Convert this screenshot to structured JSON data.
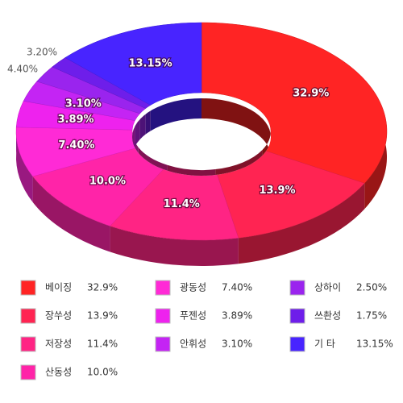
{
  "chart_data": {
    "type": "donut3d",
    "categories": [
      "베이징",
      "장쑤성",
      "저장성",
      "산동성",
      "광동성",
      "푸젠성",
      "안휘성",
      "상하이",
      "쓰촨성",
      "기 타"
    ],
    "values": [
      32.9,
      13.9,
      11.4,
      10.0,
      7.4,
      3.89,
      3.1,
      2.5,
      1.75,
      13.15
    ],
    "value_labels": [
      "32.9%",
      "13.9%",
      "11.4%",
      "10.0%",
      "7.40%",
      "3.89%",
      "3.10%",
      "2.50%",
      "1.75%",
      "13.15%"
    ],
    "colors": [
      "#ff2424",
      "#ff2452",
      "#ff2484",
      "#ff24a8",
      "#ff2ad6",
      "#ee22ee",
      "#c424f4",
      "#9a24ee",
      "#6e1eea",
      "#4824ff"
    ],
    "annotations": [
      "3.20%",
      "4.40%"
    ]
  }
}
